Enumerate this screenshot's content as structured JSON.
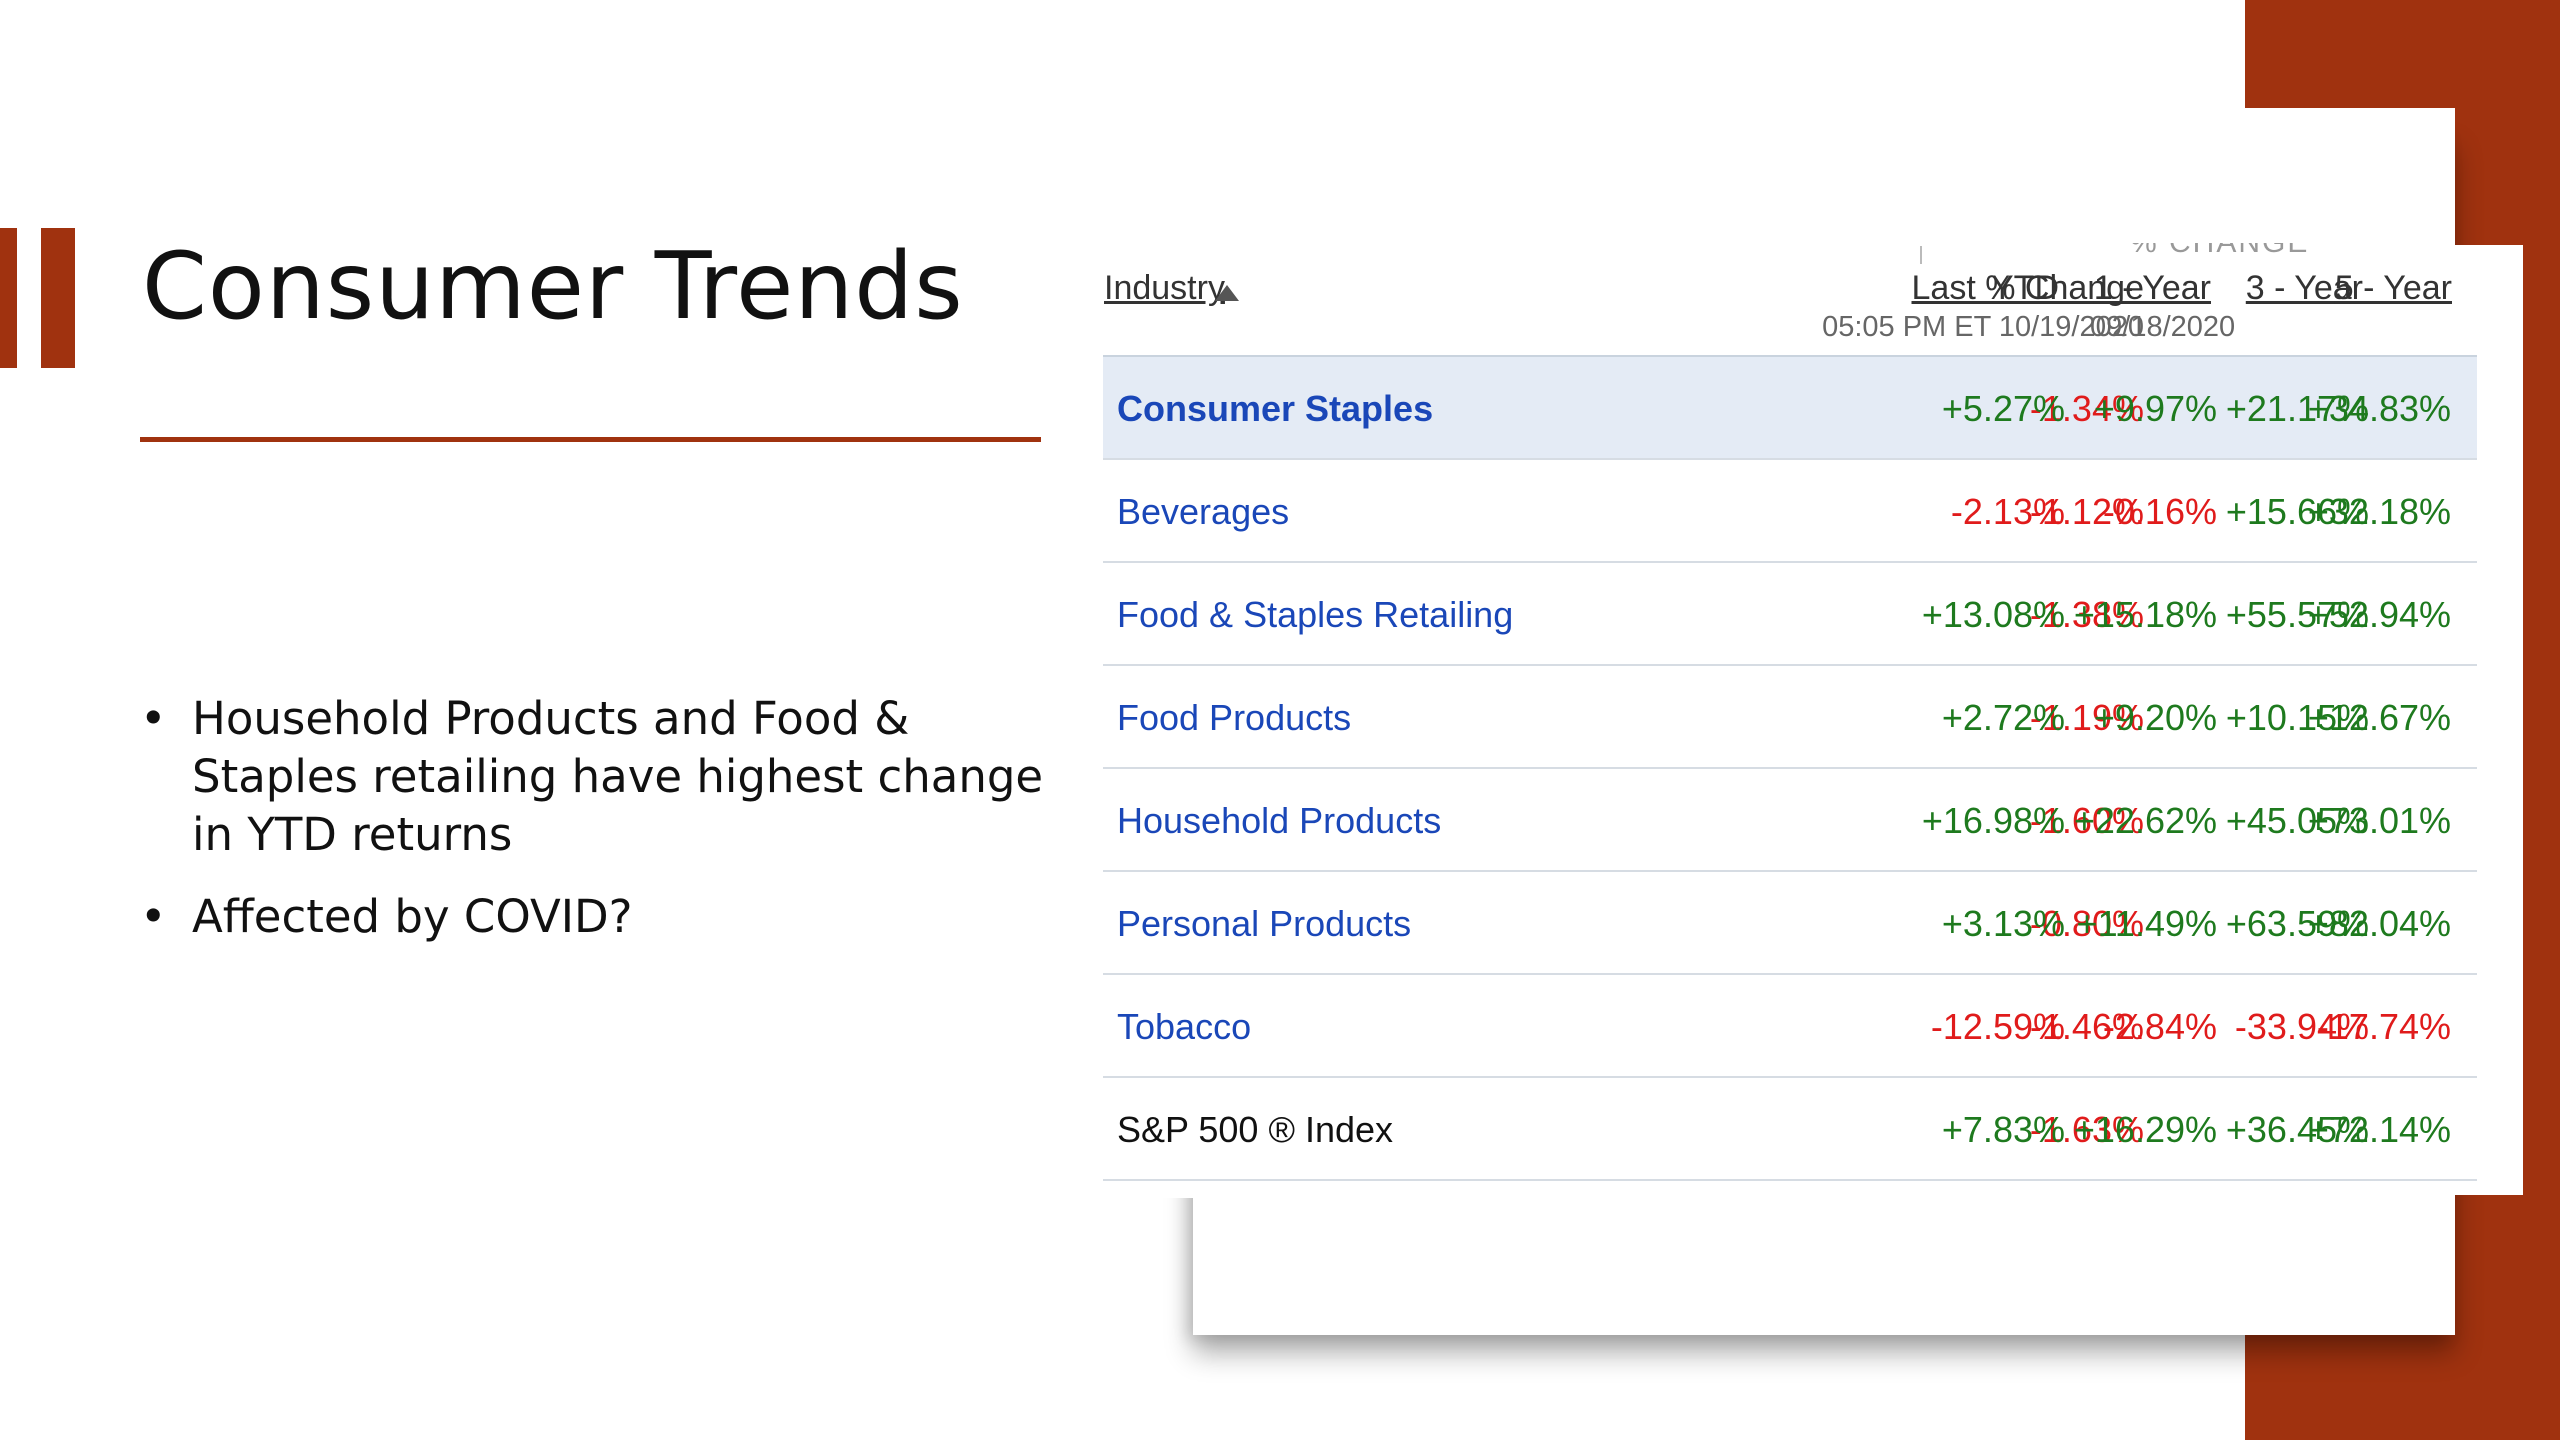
{
  "slide": {
    "title": "Consumer Trends",
    "bullets": [
      "Household Products and Food & Staples retailing have highest change in YTD returns",
      "Affected by COVID?"
    ]
  },
  "table": {
    "group_header": "% CHANGE",
    "headers": {
      "industry": "Industry",
      "last_change": "Last % Change",
      "last_change_date": "05:05 PM ET 10/19/2020",
      "ytd": "YTD",
      "one_year": "1 - Year",
      "three_year": "3 - Year",
      "five_year": "5 - Year",
      "period_date": "09/18/2020"
    },
    "rows": [
      {
        "industry": "Consumer Staples",
        "last": "-1.34%",
        "ytd": "+5.27%",
        "y1": "+9.97%",
        "y3": "+21.17%",
        "y5": "+34.83%"
      },
      {
        "industry": "Beverages",
        "last": "-1.12%",
        "ytd": "-2.13%",
        "y1": "-0.16%",
        "y3": "+15.66%",
        "y5": "+32.18%"
      },
      {
        "industry": "Food & Staples Retailing",
        "last": "-1.38%",
        "ytd": "+13.08%",
        "y1": "+15.18%",
        "y3": "+55.57%",
        "y5": "+52.94%"
      },
      {
        "industry": "Food Products",
        "last": "-1.19%",
        "ytd": "+2.72%",
        "y1": "+9.20%",
        "y3": "+10.15%",
        "y5": "+12.67%"
      },
      {
        "industry": "Household Products",
        "last": "-1.60%",
        "ytd": "+16.98%",
        "y1": "+22.62%",
        "y3": "+45.05%",
        "y5": "+73.01%"
      },
      {
        "industry": "Personal Products",
        "last": "-0.80%",
        "ytd": "+3.13%",
        "y1": "+11.49%",
        "y3": "+63.59%",
        "y5": "+82.04%"
      },
      {
        "industry": "Tobacco",
        "last": "-1.46%",
        "ytd": "-12.59%",
        "y1": "-2.84%",
        "y3": "-33.94%",
        "y5": "-17.74%"
      },
      {
        "industry": "S&P 500 ® Index",
        "last": "-1.63%",
        "ytd": "+7.83%",
        "y1": "+16.29%",
        "y3": "+36.45%",
        "y5": "+72.14%"
      }
    ]
  },
  "colors": {
    "accent": "#a0320f",
    "link": "#1a47b8",
    "negative": "#e01b1b",
    "positive": "#1e7a1e",
    "highlight_row": "#e4ebf5"
  }
}
